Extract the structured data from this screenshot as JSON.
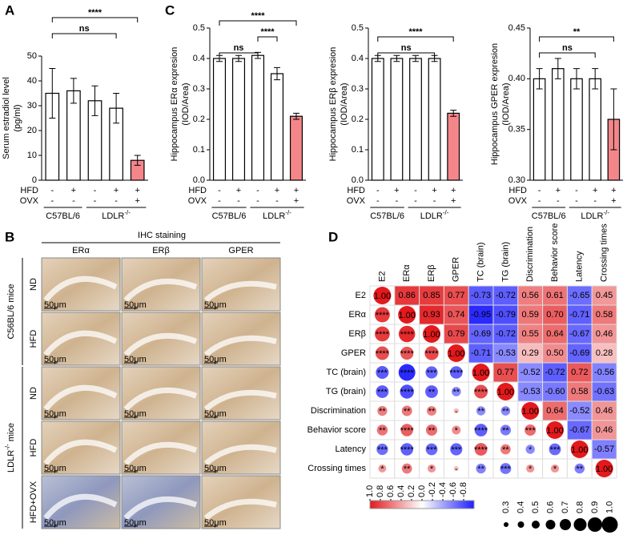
{
  "chart_data": [
    {
      "type": "bar",
      "panel": "A",
      "ylabel": [
        "Serum estradiol level",
        "(pg/ml)"
      ],
      "categories": [
        null,
        null,
        null,
        null,
        null
      ],
      "values": [
        35,
        36,
        32,
        29,
        8
      ],
      "errors": [
        10,
        5,
        6,
        6,
        2
      ],
      "colors": [
        "#ffffff",
        "#ffffff",
        "#ffffff",
        "#ffffff",
        "#f4868a"
      ],
      "ylim": [
        0,
        50
      ],
      "yticks": [
        0,
        10,
        20,
        30,
        40,
        50
      ],
      "rows": [
        {
          "name": "HFD",
          "values": [
            "-",
            "+",
            "-",
            "+",
            "+"
          ]
        },
        {
          "name": "OVX",
          "values": [
            "-",
            "-",
            "-",
            "-",
            "+"
          ]
        }
      ],
      "groups": [
        {
          "name": "C57BL/6",
          "from": 0,
          "to": 1
        },
        {
          "name": "LDLR",
          "sup": "-/-",
          "from": 2,
          "to": 4
        }
      ],
      "annotations": [
        {
          "text": "ns",
          "from": 0,
          "to": 3
        },
        {
          "text": "****",
          "from": 0,
          "to": 4
        }
      ]
    },
    {
      "type": "bar",
      "panel": "C",
      "ylabel": [
        "Hippocampus ERα expresion",
        "(IOD/Area)"
      ],
      "categories": [
        null,
        null,
        null,
        null,
        null
      ],
      "values": [
        0.4,
        0.4,
        0.41,
        0.35,
        0.21
      ],
      "errors": [
        0.01,
        0.01,
        0.01,
        0.02,
        0.01
      ],
      "colors": [
        "#ffffff",
        "#ffffff",
        "#ffffff",
        "#ffffff",
        "#f4868a"
      ],
      "ylim": [
        0,
        0.5
      ],
      "yticks": [
        {
          "value": 0,
          "label": "0.0"
        },
        0.1,
        0.2,
        0.3,
        0.4,
        0.5
      ],
      "rows": [
        {
          "name": "HFD",
          "values": [
            "-",
            "+",
            "-",
            "+",
            "+"
          ]
        },
        {
          "name": "OVX",
          "values": [
            "-",
            "-",
            "-",
            "-",
            "+"
          ]
        }
      ],
      "groups": [
        {
          "name": "C57BL/6",
          "from": 0,
          "to": 1
        },
        {
          "name": "LDLR",
          "sup": "-/-",
          "from": 2,
          "to": 4
        }
      ],
      "annotations": [
        {
          "text": "ns",
          "from": 0,
          "to": 2
        },
        {
          "text": "****",
          "from": 2,
          "to": 3
        },
        {
          "text": "****",
          "from": 0,
          "to": 4
        }
      ]
    },
    {
      "type": "bar",
      "ylabel": [
        "Hippocampus ERβ expresion",
        "(IOD/Area)"
      ],
      "categories": [
        null,
        null,
        null,
        null,
        null
      ],
      "values": [
        0.4,
        0.4,
        0.4,
        0.4,
        0.22
      ],
      "errors": [
        0.01,
        0.01,
        0.01,
        0.01,
        0.01
      ],
      "colors": [
        "#ffffff",
        "#ffffff",
        "#ffffff",
        "#ffffff",
        "#f4868a"
      ],
      "ylim": [
        0,
        0.5
      ],
      "yticks": [
        {
          "value": 0,
          "label": "0.0"
        },
        0.1,
        0.2,
        0.3,
        0.4,
        0.5
      ],
      "rows": [
        {
          "name": "HFD",
          "values": [
            "-",
            "+",
            "-",
            "+",
            "+"
          ]
        },
        {
          "name": "OVX",
          "values": [
            "-",
            "-",
            "-",
            "-",
            "+"
          ]
        }
      ],
      "groups": [
        {
          "name": "C57BL/6",
          "from": 0,
          "to": 1
        },
        {
          "name": "LDLR",
          "sup": "-/-",
          "from": 2,
          "to": 4
        }
      ],
      "annotations": [
        {
          "text": "ns",
          "from": 0,
          "to": 3
        },
        {
          "text": "****",
          "from": 0,
          "to": 4
        }
      ]
    },
    {
      "type": "bar",
      "ylabel": [
        "Hippocampus GPER expresion",
        "(IOD/Area)"
      ],
      "categories": [
        null,
        null,
        null,
        null,
        null
      ],
      "values": [
        0.4,
        0.41,
        0.4,
        0.4,
        0.36
      ],
      "errors": [
        0.01,
        0.01,
        0.01,
        0.01,
        0.03
      ],
      "colors": [
        "#ffffff",
        "#ffffff",
        "#ffffff",
        "#ffffff",
        "#f4868a"
      ],
      "ylim": [
        0.3,
        0.45
      ],
      "yticks": [
        {
          "value": 0.3,
          "label": "0.30"
        },
        0.35,
        {
          "value": 0.4,
          "label": "0.40"
        },
        0.45
      ],
      "rows": [
        {
          "name": "HFD",
          "values": [
            "-",
            "+",
            "-",
            "+",
            "+"
          ]
        },
        {
          "name": "OVX",
          "values": [
            "-",
            "-",
            "-",
            "-",
            "+"
          ]
        }
      ],
      "groups": [
        {
          "name": "C57BL/6",
          "from": 0,
          "to": 1
        },
        {
          "name": "LDLR",
          "sup": "-/-",
          "from": 2,
          "to": 4
        }
      ],
      "annotations": [
        {
          "text": "ns",
          "from": 0,
          "to": 3
        },
        {
          "text": "**",
          "from": 0,
          "to": 4
        }
      ]
    },
    {
      "type": "correlation",
      "panel": "D",
      "variables": [
        "E2",
        "ERα",
        "ERβ",
        "GPER",
        "TC (brain)",
        "TG (brain)",
        "Discrimination",
        "Behavior score",
        "Latency",
        "Crossing times"
      ],
      "colors": {
        "positive": "#e3191c",
        "negative": "#1f1fff"
      },
      "matrix": [
        [
          1,
          0.86,
          0.85,
          0.77,
          -0.73,
          -0.72,
          0.56,
          0.61,
          -0.65,
          0.45
        ],
        [
          0.86,
          1,
          0.93,
          0.74,
          -0.95,
          -0.79,
          0.59,
          0.7,
          -0.71,
          0.58
        ],
        [
          0.85,
          0.93,
          1,
          0.79,
          -0.69,
          -0.72,
          0.55,
          0.64,
          -0.67,
          0.46
        ],
        [
          0.77,
          0.74,
          0.79,
          1,
          -0.71,
          -0.53,
          0.29,
          0.5,
          -0.69,
          0.28
        ],
        [
          -0.73,
          -0.95,
          -0.69,
          -0.71,
          1,
          0.77,
          -0.52,
          -0.72,
          0.72,
          -0.56
        ],
        [
          -0.72,
          -0.79,
          -0.72,
          -0.53,
          0.77,
          1,
          -0.53,
          -0.6,
          0.58,
          -0.63
        ],
        [
          0.56,
          0.59,
          0.55,
          0.29,
          -0.52,
          -0.53,
          1,
          0.64,
          -0.52,
          0.46
        ],
        [
          0.61,
          0.7,
          0.64,
          0.5,
          -0.72,
          -0.6,
          0.64,
          1,
          -0.67,
          0.46
        ],
        [
          -0.65,
          -0.71,
          -0.67,
          -0.69,
          0.72,
          0.58,
          -0.52,
          -0.67,
          1,
          -0.57
        ],
        [
          0.45,
          0.58,
          0.46,
          0.28,
          -0.56,
          -0.63,
          0.46,
          0.46,
          -0.57,
          1
        ]
      ],
      "value_labels": [
        [
          "1.00",
          "0.86",
          "0.85",
          "0.77",
          "-0.73",
          "-0.72",
          "0.56",
          "0.61",
          "-0.65",
          "0.45"
        ],
        [
          null,
          "1.00",
          "0.93",
          "0.74",
          "-0.95",
          "-0.79",
          "0.59",
          "0.70",
          "-0.71",
          "0.58"
        ],
        [
          null,
          null,
          "1.00",
          "0.79",
          "-0.69",
          "-0.72",
          "0.55",
          "0.64",
          "-0.67",
          "0.46"
        ],
        [
          null,
          null,
          null,
          "1.00",
          "-0.71",
          "-0.53",
          "0.29",
          "0.50",
          "-0.69",
          "0.28"
        ],
        [
          null,
          null,
          null,
          null,
          "1.00",
          "0.77",
          "-0.52",
          "-0.72",
          "0.72",
          "-0.56"
        ],
        [
          null,
          null,
          null,
          null,
          null,
          "1.00",
          "-0.53",
          "-0.60",
          "0.58",
          "-0.63"
        ],
        [
          null,
          null,
          null,
          null,
          null,
          null,
          "1.00",
          "0.64",
          "-0.52",
          "0.46"
        ],
        [
          null,
          null,
          null,
          null,
          null,
          null,
          null,
          "1.00",
          "-0.67",
          "0.46"
        ],
        [
          null,
          null,
          null,
          null,
          null,
          null,
          null,
          null,
          "1.00",
          "-0.57"
        ],
        [
          null,
          null,
          null,
          null,
          null,
          null,
          null,
          null,
          null,
          "1.00"
        ]
      ],
      "stars": [
        [
          null,
          null,
          null,
          null,
          null,
          null,
          null,
          null,
          null,
          null
        ],
        [
          "****",
          null,
          null,
          null,
          null,
          null,
          null,
          null,
          null,
          null
        ],
        [
          "****",
          "****",
          null,
          null,
          null,
          null,
          null,
          null,
          null,
          null
        ],
        [
          "****",
          "****",
          "****",
          null,
          null,
          null,
          null,
          null,
          null,
          null
        ],
        [
          "***",
          "****",
          "***",
          "****",
          null,
          null,
          null,
          null,
          null,
          null
        ],
        [
          "***",
          "****",
          "**",
          "**",
          "****",
          null,
          null,
          null,
          null,
          null
        ],
        [
          "**",
          "**",
          "**",
          "-",
          "**",
          "**",
          null,
          null,
          null,
          null
        ],
        [
          "**",
          "****",
          "**",
          "*",
          "****",
          "**",
          "***",
          null,
          null,
          null
        ],
        [
          "***",
          "****",
          "***",
          "***",
          "****",
          "**",
          "*",
          "***",
          null,
          null
        ],
        [
          "*",
          "**",
          "*",
          "-",
          "**",
          "***",
          "*",
          "*",
          "**",
          null
        ]
      ],
      "colorbar_lim": [
        1,
        -1
      ],
      "colorbar_ticks": [
        {
          "value": 1,
          "label": "1.0"
        },
        0.8,
        0.6,
        0.4,
        0.2,
        {
          "value": 0,
          "label": "0.0"
        },
        -0.2,
        -0.4,
        -0.6,
        -0.8
      ],
      "size_ticks": [
        0.3,
        0.4,
        0.5,
        0.6,
        0.7,
        0.8,
        0.9,
        {
          "value": 1,
          "label": "1.0"
        }
      ]
    }
  ],
  "panel_b": {
    "label": "B",
    "title": "IHC staining",
    "columns": [
      "ERα",
      "ERβ",
      "GPER"
    ],
    "rows": [
      "ND",
      "HFD",
      "ND",
      "HFD",
      "HFD+OVX"
    ],
    "groups": [
      {
        "name": "C56BL/6 mice"
      },
      {
        "name": "LDLR",
        "sup": "-/-",
        "tail": " mice"
      }
    ],
    "scale": "50μm"
  }
}
